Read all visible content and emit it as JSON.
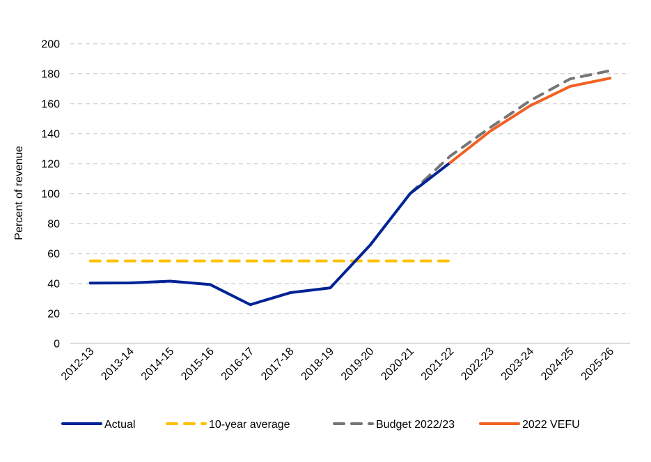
{
  "chart_data": {
    "type": "line",
    "title": "",
    "xlabel": "",
    "ylabel": "Percent of revenue",
    "ylim": [
      0,
      200
    ],
    "yticks": [
      0,
      20,
      40,
      60,
      80,
      100,
      120,
      140,
      160,
      180,
      200
    ],
    "grid": true,
    "legend_position": "bottom",
    "categories": [
      "2012-13",
      "2013-14",
      "2014-15",
      "2015-16",
      "2016-17",
      "2017-18",
      "2018-19",
      "2019-20",
      "2020-21",
      "2021-22",
      "2022-23",
      "2023-24",
      "2024-25",
      "2025-26"
    ],
    "series": [
      {
        "name": "Actual",
        "color": "#002395",
        "dash": "solid",
        "values": [
          40.2,
          40.3,
          41.5,
          39.2,
          25.8,
          33.8,
          37.0,
          65.6,
          100.0,
          120.6,
          null,
          null,
          null,
          null
        ]
      },
      {
        "name": "10-year average",
        "color": "#FFC000",
        "dash": "dashed",
        "values": [
          55,
          55,
          55,
          55,
          55,
          55,
          55,
          55,
          55,
          55,
          null,
          null,
          null,
          null
        ]
      },
      {
        "name": "Budget 2022/23",
        "color": "#767676",
        "dash": "dashed",
        "values": [
          null,
          null,
          null,
          null,
          null,
          null,
          null,
          null,
          100.0,
          125.0,
          144.0,
          162.0,
          176.5,
          182.0
        ]
      },
      {
        "name": "2022 VEFU",
        "color": "#F26122",
        "dash": "solid",
        "values": [
          null,
          null,
          null,
          null,
          null,
          null,
          null,
          null,
          null,
          120.6,
          141.6,
          158.6,
          171.5,
          177.0
        ]
      }
    ]
  }
}
